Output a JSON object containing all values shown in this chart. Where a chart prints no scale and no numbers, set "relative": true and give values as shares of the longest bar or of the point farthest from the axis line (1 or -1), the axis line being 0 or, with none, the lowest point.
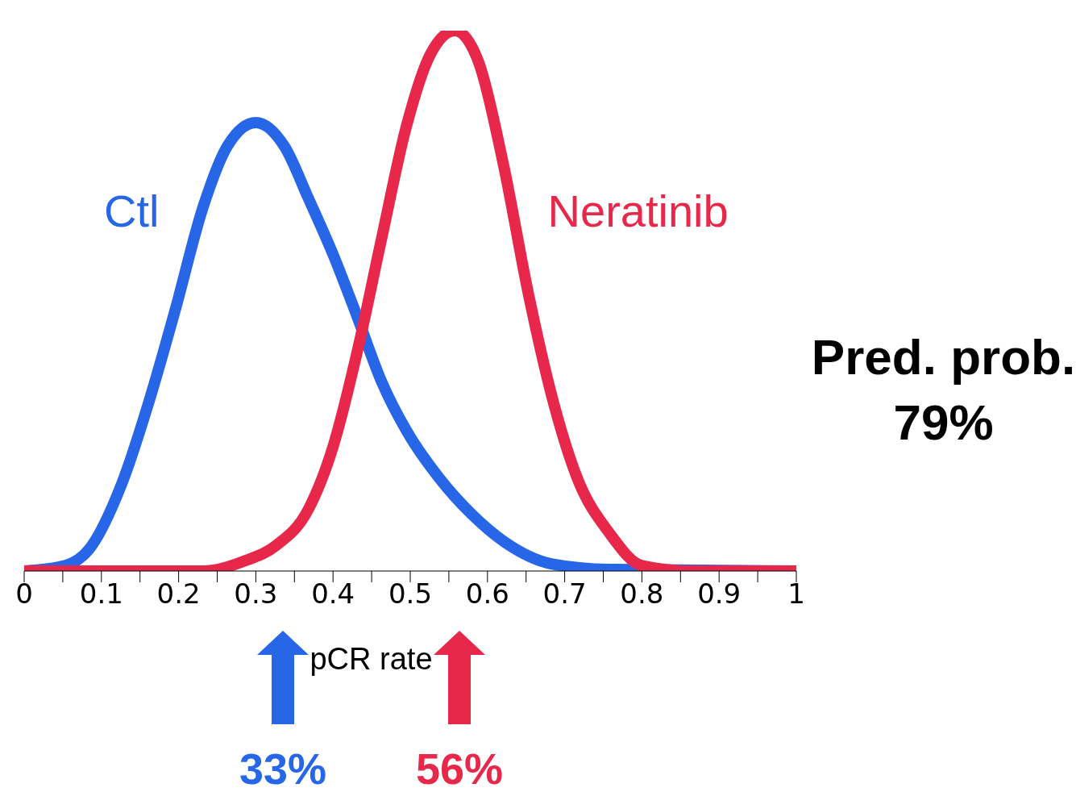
{
  "chart_data": {
    "type": "line",
    "relative": true,
    "xlabel": "pCR rate",
    "xlim": [
      0,
      1
    ],
    "xticks": [
      0,
      {
        "value": 0.05,
        "label": null
      },
      0.1,
      {
        "value": 0.15,
        "label": null
      },
      0.2,
      {
        "value": 0.25,
        "label": null
      },
      0.3,
      {
        "value": 0.35,
        "label": null
      },
      0.4,
      {
        "value": 0.45,
        "label": null
      },
      0.5,
      {
        "value": 0.55,
        "label": null
      },
      0.6,
      {
        "value": 0.65,
        "label": null
      },
      0.7,
      {
        "value": 0.75,
        "label": null
      },
      0.8,
      {
        "value": 0.85,
        "label": null
      },
      0.9,
      {
        "value": 0.95,
        "label": null
      },
      1
    ],
    "series": [
      {
        "name": "Ctl",
        "color": "#2866e8",
        "x": [
          0,
          0.053,
          0.084,
          0.126,
          0.163,
          0.195,
          0.232,
          0.263,
          0.3,
          0.337,
          0.368,
          0.4,
          0.432,
          0.463,
          0.495,
          0.537,
          0.579,
          0.621,
          0.684,
          0.758,
          1
        ],
        "values": [
          0,
          0.01,
          0.04,
          0.16,
          0.32,
          0.48,
          0.675,
          0.786,
          0.83,
          0.786,
          0.69,
          0.586,
          0.468,
          0.35,
          0.26,
          0.173,
          0.106,
          0.055,
          0.013,
          0.003,
          0
        ]
      },
      {
        "name": "Neratinib",
        "color": "#e8284a",
        "x": [
          0,
          0.232,
          0.284,
          0.326,
          0.368,
          0.4,
          0.432,
          0.463,
          0.495,
          0.526,
          0.558,
          0.589,
          0.621,
          0.653,
          0.684,
          0.716,
          0.758,
          0.8,
          0.863,
          1
        ],
        "values": [
          0,
          0,
          0.018,
          0.047,
          0.114,
          0.23,
          0.41,
          0.616,
          0.823,
          0.956,
          1,
          0.94,
          0.75,
          0.513,
          0.32,
          0.173,
          0.07,
          0.01,
          0,
          0
        ]
      }
    ],
    "annotations": [
      "33%",
      "56%",
      "Pred. prob.\n79%"
    ],
    "marker": "none",
    "line_style": "solid"
  }
}
